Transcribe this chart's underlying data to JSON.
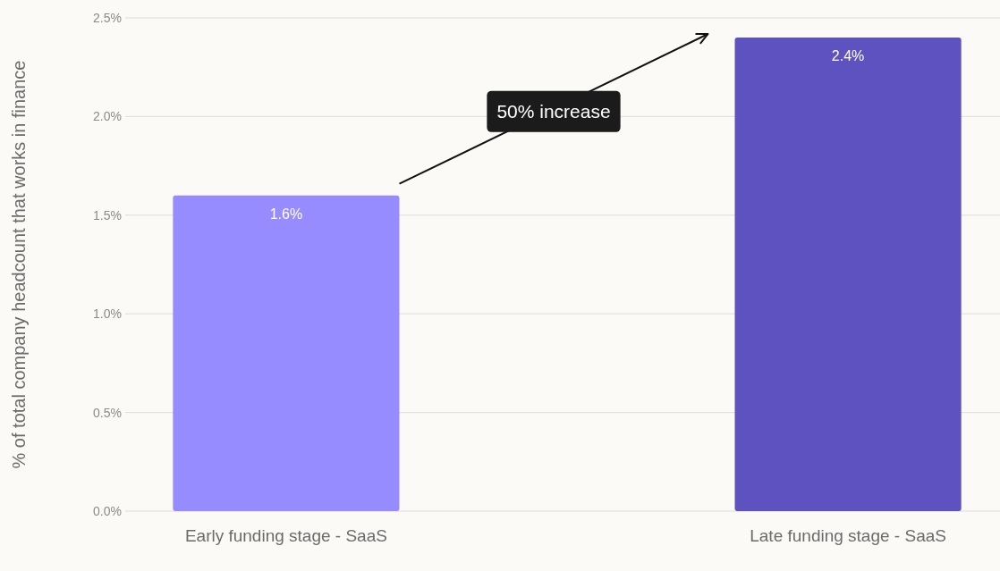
{
  "chart_data": {
    "type": "bar",
    "ylabel": "% of total company headcount that works in finance",
    "categories": [
      "Early funding stage - SaaS",
      "Late funding stage - SaaS"
    ],
    "values": [
      1.6,
      2.4
    ],
    "colors": [
      "#978cff",
      "#5d52c0"
    ],
    "ylim": [
      0,
      2.5
    ],
    "yticks": [
      {
        "value": 0,
        "label": "0.0%"
      },
      {
        "value": 0.5,
        "label": "0.5%"
      },
      {
        "value": 1,
        "label": "1.0%"
      },
      {
        "value": 1.5,
        "label": "1.5%"
      },
      {
        "value": 2,
        "label": "2.0%"
      },
      {
        "value": 2.5,
        "label": "2.5%"
      }
    ],
    "grid": "y",
    "value_labels": [
      "1.6%",
      "2.4%"
    ],
    "annotations": [
      "50% increase"
    ]
  }
}
